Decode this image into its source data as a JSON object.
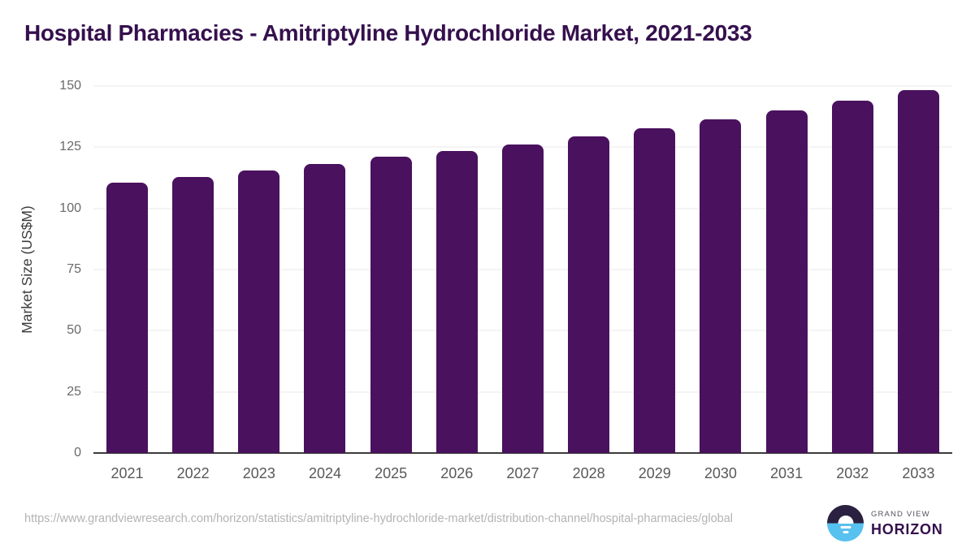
{
  "chart_data": {
    "type": "bar",
    "title": "Hospital Pharmacies - Amitriptyline Hydrochloride Market, 2021-2033",
    "categories": [
      "2021",
      "2022",
      "2023",
      "2024",
      "2025",
      "2026",
      "2027",
      "2028",
      "2029",
      "2030",
      "2031",
      "2032",
      "2033"
    ],
    "values": [
      110.5,
      112.7,
      115.4,
      118.2,
      121.0,
      123.3,
      126.1,
      129.4,
      132.6,
      136.4,
      139.9,
      143.9,
      148.5
    ],
    "xlabel": "",
    "ylabel": "Market Size (US$M)",
    "ylim": [
      0,
      150
    ],
    "yticks": [
      0,
      25,
      50,
      75,
      100,
      125,
      150
    ],
    "grid": true,
    "legend": false,
    "bar_color": "#4A115E",
    "title_color": "#35104D",
    "gridline_color": "#e9e9e9",
    "axis_line_color": "#3b3b3b"
  },
  "footer": {
    "source_url": "https://www.grandviewresearch.com/horizon/statistics/amitriptyline-hydrochloride-market/distribution-channel/hospital-pharmacies/global",
    "logo": {
      "top": "GRAND VIEW",
      "bottom": "HORIZON",
      "circle_top_color": "#2A2140",
      "circle_bottom_color": "#57C1EF"
    }
  }
}
